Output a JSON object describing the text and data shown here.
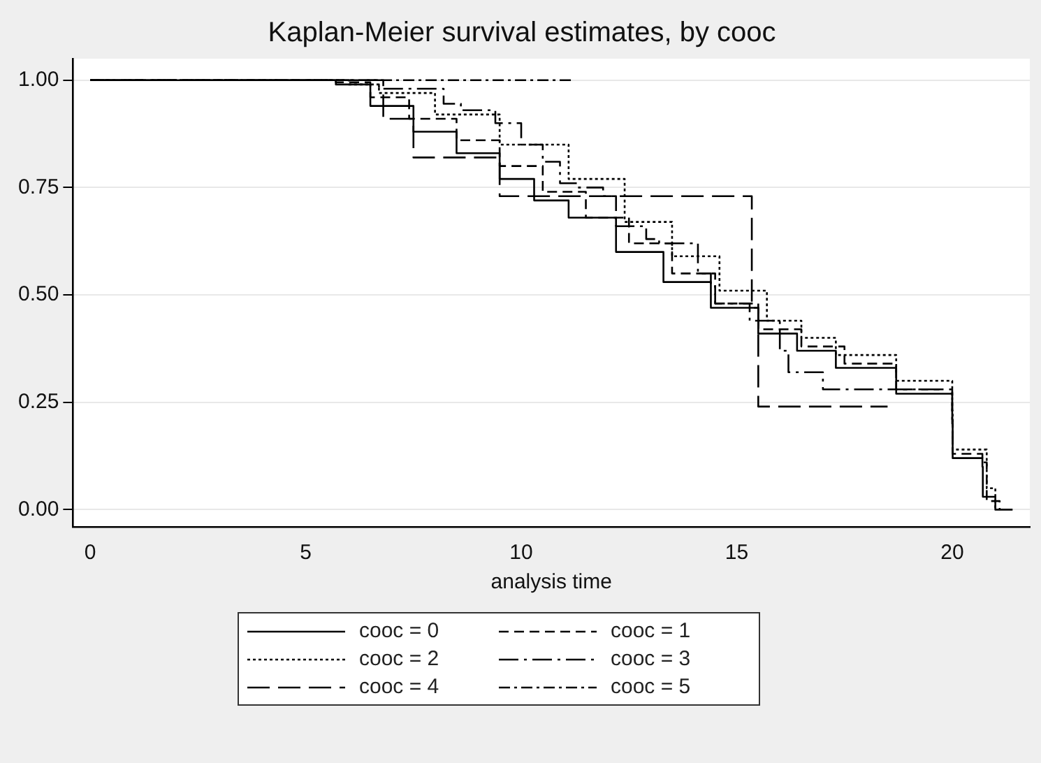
{
  "chart_data": {
    "type": "step",
    "title": "Kaplan-Meier survival estimates, by cooc",
    "xlabel": "analysis time",
    "xlim": [
      -0.4,
      21.8
    ],
    "xticks": [
      0,
      5,
      10,
      15,
      20
    ],
    "ylim": [
      -0.04,
      1.05
    ],
    "yticks": [
      {
        "value": 0,
        "label": "0.00"
      },
      {
        "value": 0.25,
        "label": "0.25"
      },
      {
        "value": 0.5,
        "label": "0.50"
      },
      {
        "value": 0.75,
        "label": "0.75"
      },
      {
        "value": 1,
        "label": "1.00"
      }
    ],
    "grid": "y",
    "legend": "bottom",
    "series": [
      {
        "name": "cooc = 0",
        "color": "#000000",
        "line_style": "solid",
        "x": [
          0,
          5.0,
          5.7,
          6.5,
          7.5,
          8.5,
          9.5,
          10.3,
          11.1,
          12.2,
          13.3,
          14.4,
          15.5,
          16.4,
          17.3,
          18.7,
          20.0,
          20.01,
          20.7,
          20.71,
          21.0,
          21.4
        ],
        "values": [
          1,
          1,
          0.99,
          0.94,
          0.88,
          0.83,
          0.77,
          0.72,
          0.68,
          0.6,
          0.53,
          0.47,
          0.41,
          0.37,
          0.33,
          0.27,
          0.2,
          0.12,
          0.1,
          0.03,
          0,
          0
        ]
      },
      {
        "name": "cooc = 1",
        "color": "#000000",
        "line_style": "dashed",
        "x": [
          0,
          5.0,
          5.7,
          6.5,
          7.4,
          8.5,
          9.5,
          10.5,
          11.5,
          12.5,
          13.5,
          14.5,
          15.5,
          16.5,
          17.5,
          18.7,
          20.0,
          20.01,
          20.7,
          20.8,
          21.1
        ],
        "values": [
          1,
          1,
          0.995,
          0.96,
          0.91,
          0.86,
          0.8,
          0.74,
          0.68,
          0.62,
          0.55,
          0.48,
          0.42,
          0.38,
          0.34,
          0.28,
          0.21,
          0.13,
          0.11,
          0.02,
          0
        ]
      },
      {
        "name": "cooc = 2",
        "color": "#000000",
        "line_style": "dotted",
        "x": [
          0,
          5.2,
          6.0,
          6.7,
          8.0,
          9.5,
          11.1,
          12.4,
          13.5,
          14.6,
          15.7,
          16.5,
          17.3,
          18.7,
          20.0,
          20.01,
          20.7,
          20.8,
          21.0
        ],
        "values": [
          1,
          1,
          0.99,
          0.97,
          0.92,
          0.85,
          0.77,
          0.67,
          0.59,
          0.51,
          0.44,
          0.4,
          0.36,
          0.3,
          0.23,
          0.14,
          0.14,
          0.05,
          0
        ]
      },
      {
        "name": "cooc = 3",
        "color": "#000000",
        "line_style": "dashdot",
        "x": [
          0,
          6.1,
          6.7,
          8.2,
          8.6,
          9.4,
          10.0,
          10.5,
          10.9,
          11.3,
          11.9,
          12.2,
          12.9,
          13.2,
          14.1,
          14.4,
          14.5,
          15.3,
          16.0,
          16.2,
          17.0,
          19.7
        ],
        "values": [
          1,
          1,
          0.98,
          0.945,
          0.93,
          0.9,
          0.85,
          0.81,
          0.76,
          0.75,
          0.73,
          0.66,
          0.63,
          0.62,
          0.55,
          0.52,
          0.48,
          0.44,
          0.37,
          0.32,
          0.28,
          0.28
        ]
      },
      {
        "name": "cooc = 4",
        "color": "#000000",
        "line_style": "longdash",
        "x": [
          0,
          6.8,
          7.5,
          9.5,
          15.35,
          15.5,
          18.5
        ],
        "values": [
          1,
          0.91,
          0.82,
          0.73,
          0.47,
          0.24,
          0.24
        ]
      },
      {
        "name": "cooc = 5",
        "color": "#000000",
        "line_style": "dashdotdot",
        "x": [
          0,
          11.2
        ],
        "values": [
          1,
          1
        ]
      }
    ]
  }
}
